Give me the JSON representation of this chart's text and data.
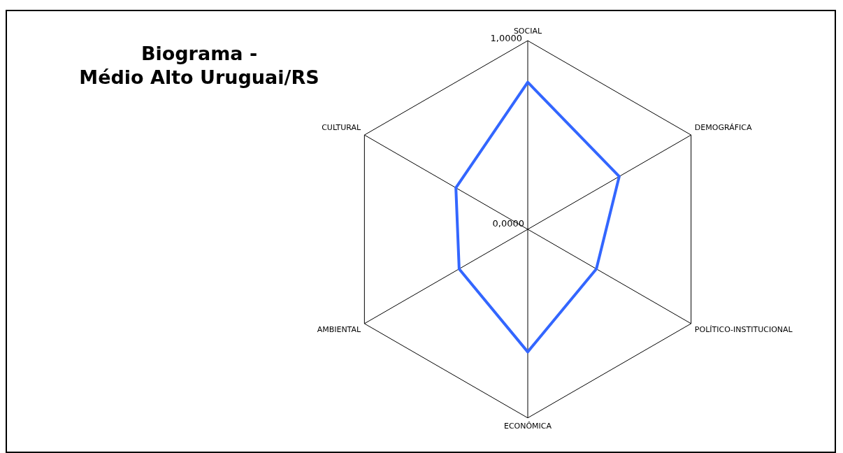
{
  "chart_data": {
    "type": "radar",
    "title": "Biograma -\nMédio Alto Uruguai/RS",
    "categories": [
      "SOCIAL",
      "DEMOGRÁFICA",
      "POLÍTICO-INSTITUCIONAL",
      "ECONÔMICA",
      "AMBIENTAL",
      "CULTURAL"
    ],
    "series": [
      {
        "color": "#3366ff",
        "values": [
          0.78,
          0.56,
          0.42,
          0.65,
          0.42,
          0.44
        ]
      }
    ],
    "ylim": [
      0,
      1
    ],
    "yticks": [
      {
        "value": 0,
        "label": "0,0000"
      },
      {
        "value": 1,
        "label": "1,0000"
      }
    ],
    "grid": true,
    "marker": "none"
  }
}
